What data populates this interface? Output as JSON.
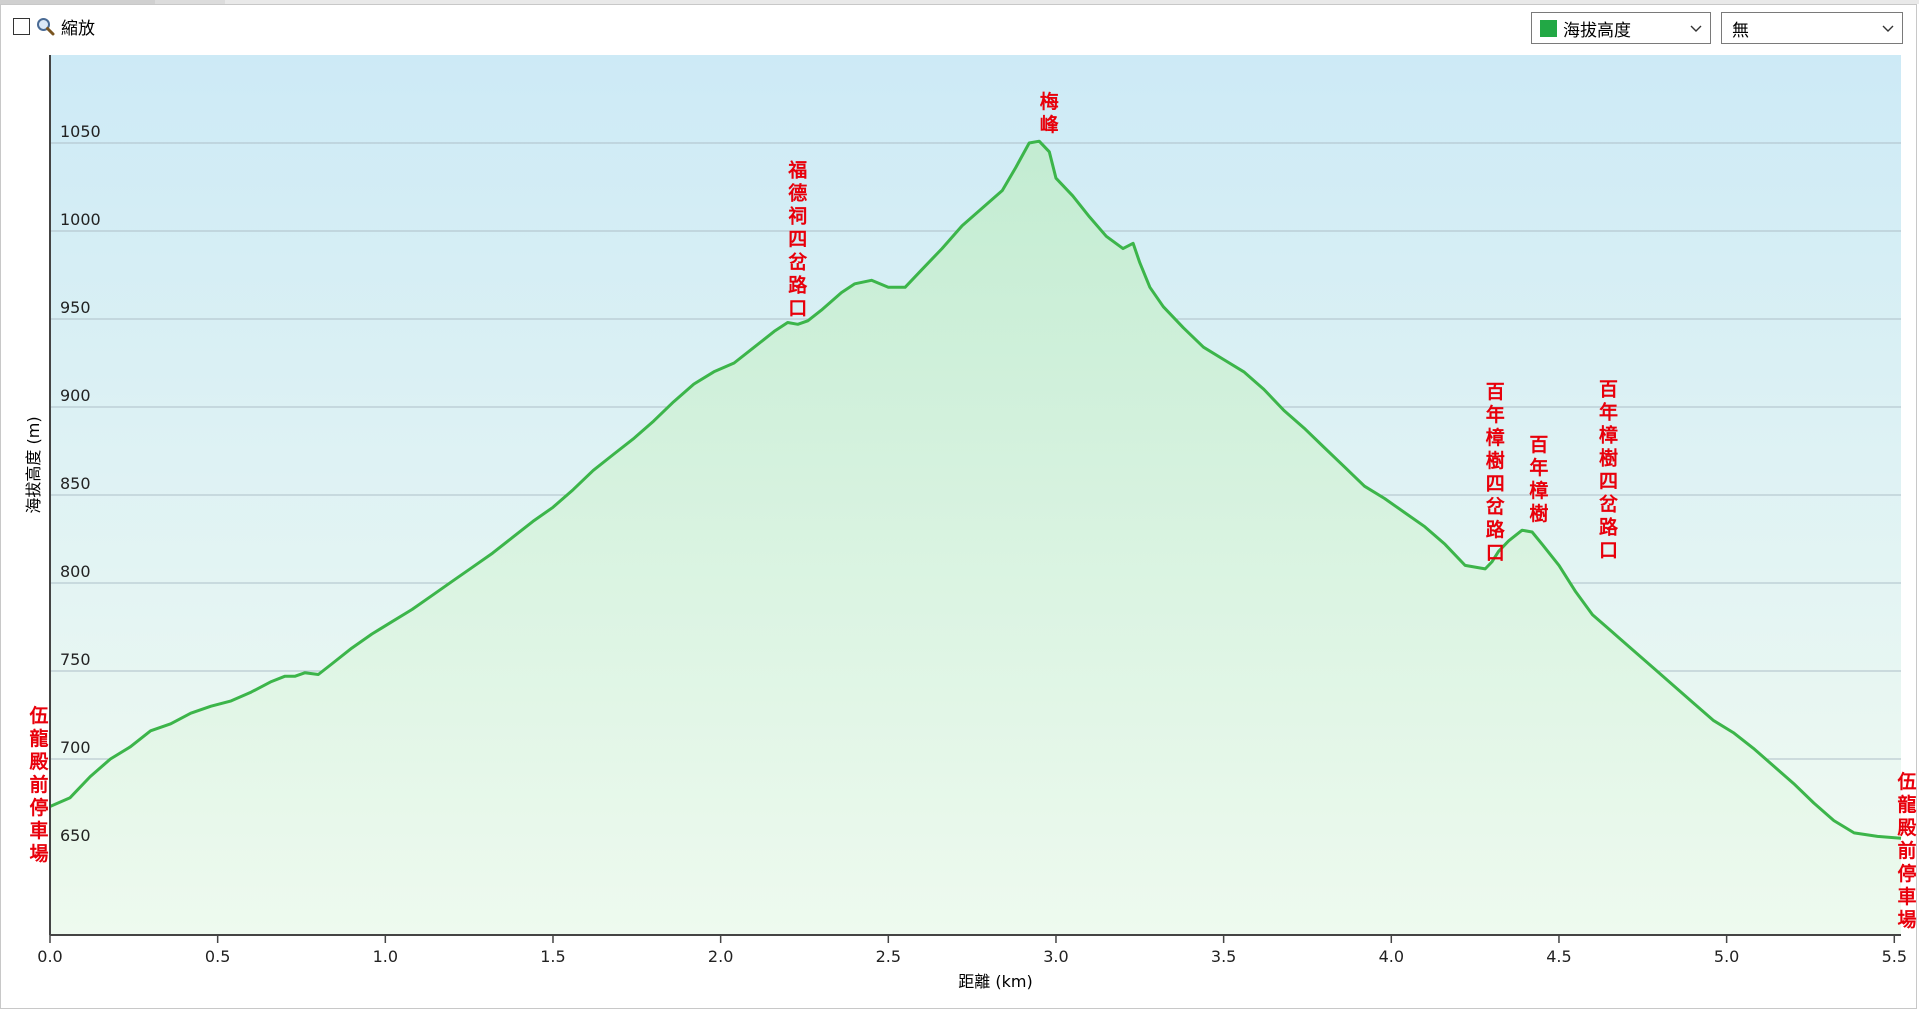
{
  "toolbar": {
    "zoom_label": "縮放",
    "series_select": "海拔高度",
    "series_color": "#22a845",
    "second_select": "無"
  },
  "chart_data": {
    "type": "area",
    "ylabel": "海拔高度 (m)",
    "xlabel": "距離 (km)",
    "xlim": [
      0,
      5.52
    ],
    "ylim": [
      600,
      1100
    ],
    "xticks": [
      0,
      0.5,
      1.0,
      1.5,
      2.0,
      2.5,
      3.0,
      3.5,
      4.0,
      4.5,
      5.0,
      5.5
    ],
    "xtick_labels": [
      "0.0",
      "0.5",
      "1.0",
      "1.5",
      "2.0",
      "2.5",
      "3.0",
      "3.5",
      "4.0",
      "4.5",
      "5.0",
      "5.5"
    ],
    "yticks": [
      650,
      700,
      750,
      800,
      850,
      900,
      950,
      1000,
      1050
    ],
    "ytick_labels": [
      "650",
      "700",
      "750",
      "800",
      "850",
      "900",
      "950",
      "1000",
      "1050"
    ],
    "grid": true,
    "line_color": "#3cb54a",
    "series": [
      {
        "x": [
          0.0,
          0.06,
          0.12,
          0.18,
          0.24,
          0.3,
          0.36,
          0.42,
          0.48,
          0.54,
          0.6,
          0.66,
          0.7,
          0.73,
          0.76,
          0.8,
          0.84,
          0.9,
          0.96,
          1.02,
          1.08,
          1.14,
          1.2,
          1.26,
          1.32,
          1.38,
          1.44,
          1.5,
          1.56,
          1.62,
          1.68,
          1.74,
          1.8,
          1.86,
          1.92,
          1.98,
          2.04,
          2.1,
          2.16,
          2.2,
          2.23,
          2.26,
          2.3,
          2.36,
          2.4,
          2.45,
          2.5,
          2.55,
          2.6,
          2.66,
          2.72,
          2.78,
          2.84,
          2.88,
          2.92,
          2.95,
          2.98,
          3.0,
          3.05,
          3.1,
          3.15,
          3.2,
          3.23,
          3.25,
          3.28,
          3.32,
          3.38,
          3.44,
          3.5,
          3.56,
          3.62,
          3.68,
          3.74,
          3.8,
          3.86,
          3.92,
          3.98,
          4.04,
          4.1,
          4.16,
          4.22,
          4.28,
          4.3,
          4.32,
          4.35,
          4.39,
          4.42,
          4.45,
          4.5,
          4.55,
          4.6,
          4.66,
          4.72,
          4.78,
          4.84,
          4.9,
          4.96,
          5.02,
          5.08,
          5.14,
          5.2,
          5.26,
          5.32,
          5.38,
          5.45,
          5.52
        ],
        "y": [
          673,
          678,
          690,
          700,
          707,
          716,
          720,
          726,
          730,
          733,
          738,
          744,
          747,
          747,
          749,
          748,
          754,
          763,
          771,
          778,
          785,
          793,
          801,
          809,
          817,
          826,
          835,
          843,
          853,
          864,
          873,
          882,
          892,
          903,
          913,
          920,
          925,
          934,
          943,
          948,
          947,
          949,
          955,
          965,
          970,
          972,
          968,
          968,
          978,
          990,
          1003,
          1013,
          1023,
          1036,
          1050,
          1051,
          1045,
          1030,
          1020,
          1008,
          997,
          990,
          993,
          982,
          968,
          957,
          945,
          934,
          927,
          920,
          910,
          898,
          888,
          877,
          866,
          855,
          848,
          840,
          832,
          822,
          810,
          808,
          812,
          818,
          824,
          830,
          829,
          822,
          810,
          795,
          782,
          772,
          762,
          752,
          742,
          732,
          722,
          715,
          706,
          696,
          686,
          675,
          665,
          658,
          656,
          655
        ]
      }
    ],
    "annotations": [
      {
        "x": 0.0,
        "y": 673,
        "text": "伍龍殿前停車場",
        "side": "left"
      },
      {
        "x": 2.23,
        "y": 947,
        "text": "福德祠四岔路口",
        "side": "above"
      },
      {
        "x": 2.98,
        "y": 1051,
        "text": "梅峰",
        "side": "above"
      },
      {
        "x": 4.31,
        "y": 808,
        "text": "百年樟樹四岔路口",
        "side": "above"
      },
      {
        "x": 4.44,
        "y": 830,
        "text": "百年樟樹",
        "side": "above"
      },
      {
        "x": 4.6,
        "y": 810,
        "text": "百年樟樹四岔路口",
        "side": "above-right"
      },
      {
        "x": 5.52,
        "y": 655,
        "text": "伍龍殿前停車場",
        "side": "right"
      }
    ]
  }
}
